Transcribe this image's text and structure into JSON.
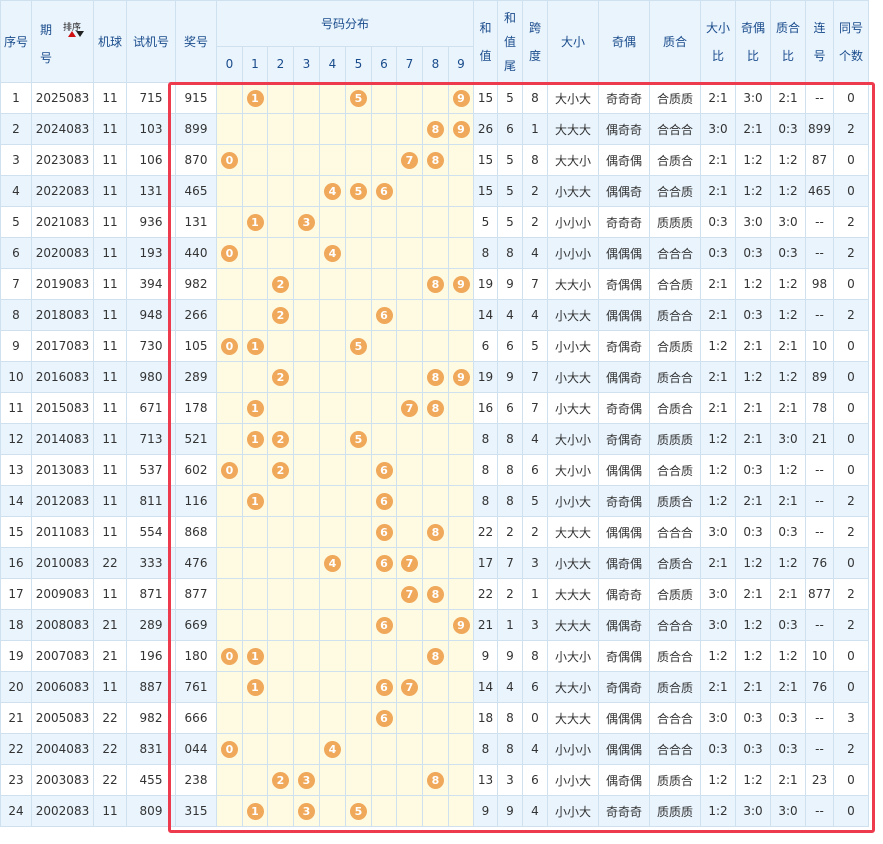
{
  "headers": {
    "seq": "序号",
    "issue": "期号",
    "sort_label": "排序",
    "machine": "机球",
    "trial": "试机号",
    "prize": "奖号",
    "distribution": "号码分布",
    "sum": "和值",
    "sum_tail": "和值尾",
    "span": "跨度",
    "size": "大小",
    "parity": "奇偶",
    "prime": "质合",
    "size_ratio": "大小比",
    "parity_ratio": "奇偶比",
    "prime_ratio": "质合比",
    "consecutive": "连号",
    "same_count": "同号个数",
    "digits": [
      "0",
      "1",
      "2",
      "3",
      "4",
      "5",
      "6",
      "7",
      "8",
      "9"
    ]
  },
  "accent": "#ee3a4d",
  "ball_color": "#f0a85a",
  "rows": [
    {
      "seq": "1",
      "issue": "2025083",
      "machine": "11",
      "trial": "715",
      "prize": "915",
      "balls": [
        1,
        5,
        9
      ],
      "sum": "15",
      "tail": "5",
      "span": "8",
      "size": "大小大",
      "parity": "奇奇奇",
      "prime": "合质质",
      "sr": "2:1",
      "pr": "3:0",
      "qr": "2:1",
      "lian": "--",
      "same": "0"
    },
    {
      "seq": "2",
      "issue": "2024083",
      "machine": "11",
      "trial": "103",
      "prize": "899",
      "balls": [
        8,
        9
      ],
      "sum": "26",
      "tail": "6",
      "span": "1",
      "size": "大大大",
      "parity": "偶奇奇",
      "prime": "合合合",
      "sr": "3:0",
      "pr": "2:1",
      "qr": "0:3",
      "lian": "899",
      "same": "2"
    },
    {
      "seq": "3",
      "issue": "2023083",
      "machine": "11",
      "trial": "106",
      "prize": "870",
      "balls": [
        0,
        7,
        8
      ],
      "sum": "15",
      "tail": "5",
      "span": "8",
      "size": "大大小",
      "parity": "偶奇偶",
      "prime": "合质合",
      "sr": "2:1",
      "pr": "1:2",
      "qr": "1:2",
      "lian": "87",
      "same": "0"
    },
    {
      "seq": "4",
      "issue": "2022083",
      "machine": "11",
      "trial": "131",
      "prize": "465",
      "balls": [
        4,
        5,
        6
      ],
      "sum": "15",
      "tail": "5",
      "span": "2",
      "size": "小大大",
      "parity": "偶偶奇",
      "prime": "合合质",
      "sr": "2:1",
      "pr": "1:2",
      "qr": "1:2",
      "lian": "465",
      "same": "0"
    },
    {
      "seq": "5",
      "issue": "2021083",
      "machine": "11",
      "trial": "936",
      "prize": "131",
      "balls": [
        1,
        3
      ],
      "sum": "5",
      "tail": "5",
      "span": "2",
      "size": "小小小",
      "parity": "奇奇奇",
      "prime": "质质质",
      "sr": "0:3",
      "pr": "3:0",
      "qr": "3:0",
      "lian": "--",
      "same": "2"
    },
    {
      "seq": "6",
      "issue": "2020083",
      "machine": "11",
      "trial": "193",
      "prize": "440",
      "balls": [
        0,
        4
      ],
      "sum": "8",
      "tail": "8",
      "span": "4",
      "size": "小小小",
      "parity": "偶偶偶",
      "prime": "合合合",
      "sr": "0:3",
      "pr": "0:3",
      "qr": "0:3",
      "lian": "--",
      "same": "2"
    },
    {
      "seq": "7",
      "issue": "2019083",
      "machine": "11",
      "trial": "394",
      "prize": "982",
      "balls": [
        2,
        8,
        9
      ],
      "sum": "19",
      "tail": "9",
      "span": "7",
      "size": "大大小",
      "parity": "奇偶偶",
      "prime": "合合质",
      "sr": "2:1",
      "pr": "1:2",
      "qr": "1:2",
      "lian": "98",
      "same": "0"
    },
    {
      "seq": "8",
      "issue": "2018083",
      "machine": "11",
      "trial": "948",
      "prize": "266",
      "balls": [
        2,
        6
      ],
      "sum": "14",
      "tail": "4",
      "span": "4",
      "size": "小大大",
      "parity": "偶偶偶",
      "prime": "质合合",
      "sr": "2:1",
      "pr": "0:3",
      "qr": "1:2",
      "lian": "--",
      "same": "2"
    },
    {
      "seq": "9",
      "issue": "2017083",
      "machine": "11",
      "trial": "730",
      "prize": "105",
      "balls": [
        0,
        1,
        5
      ],
      "sum": "6",
      "tail": "6",
      "span": "5",
      "size": "小小大",
      "parity": "奇偶奇",
      "prime": "合质质",
      "sr": "1:2",
      "pr": "2:1",
      "qr": "2:1",
      "lian": "10",
      "same": "0"
    },
    {
      "seq": "10",
      "issue": "2016083",
      "machine": "11",
      "trial": "980",
      "prize": "289",
      "balls": [
        2,
        8,
        9
      ],
      "sum": "19",
      "tail": "9",
      "span": "7",
      "size": "小大大",
      "parity": "偶偶奇",
      "prime": "质合合",
      "sr": "2:1",
      "pr": "1:2",
      "qr": "1:2",
      "lian": "89",
      "same": "0"
    },
    {
      "seq": "11",
      "issue": "2015083",
      "machine": "11",
      "trial": "671",
      "prize": "178",
      "balls": [
        1,
        7,
        8
      ],
      "sum": "16",
      "tail": "6",
      "span": "7",
      "size": "小大大",
      "parity": "奇奇偶",
      "prime": "合质合",
      "sr": "2:1",
      "pr": "2:1",
      "qr": "2:1",
      "lian": "78",
      "same": "0"
    },
    {
      "seq": "12",
      "issue": "2014083",
      "machine": "11",
      "trial": "713",
      "prize": "521",
      "balls": [
        1,
        2,
        5
      ],
      "sum": "8",
      "tail": "8",
      "span": "4",
      "size": "大小小",
      "parity": "奇偶奇",
      "prime": "质质质",
      "sr": "1:2",
      "pr": "2:1",
      "qr": "3:0",
      "lian": "21",
      "same": "0"
    },
    {
      "seq": "13",
      "issue": "2013083",
      "machine": "11",
      "trial": "537",
      "prize": "602",
      "balls": [
        0,
        2,
        6
      ],
      "sum": "8",
      "tail": "8",
      "span": "6",
      "size": "大小小",
      "parity": "偶偶偶",
      "prime": "合合质",
      "sr": "1:2",
      "pr": "0:3",
      "qr": "1:2",
      "lian": "--",
      "same": "0"
    },
    {
      "seq": "14",
      "issue": "2012083",
      "machine": "11",
      "trial": "811",
      "prize": "116",
      "balls": [
        1,
        6
      ],
      "sum": "8",
      "tail": "8",
      "span": "5",
      "size": "小小大",
      "parity": "奇奇偶",
      "prime": "质质合",
      "sr": "1:2",
      "pr": "2:1",
      "qr": "2:1",
      "lian": "--",
      "same": "2"
    },
    {
      "seq": "15",
      "issue": "2011083",
      "machine": "11",
      "trial": "554",
      "prize": "868",
      "balls": [
        6,
        8
      ],
      "sum": "22",
      "tail": "2",
      "span": "2",
      "size": "大大大",
      "parity": "偶偶偶",
      "prime": "合合合",
      "sr": "3:0",
      "pr": "0:3",
      "qr": "0:3",
      "lian": "--",
      "same": "2"
    },
    {
      "seq": "16",
      "issue": "2010083",
      "machine": "22",
      "trial": "333",
      "prize": "476",
      "balls": [
        4,
        6,
        7
      ],
      "sum": "17",
      "tail": "7",
      "span": "3",
      "size": "小大大",
      "parity": "偶奇偶",
      "prime": "合质合",
      "sr": "2:1",
      "pr": "1:2",
      "qr": "1:2",
      "lian": "76",
      "same": "0"
    },
    {
      "seq": "17",
      "issue": "2009083",
      "machine": "11",
      "trial": "871",
      "prize": "877",
      "balls": [
        7,
        8
      ],
      "sum": "22",
      "tail": "2",
      "span": "1",
      "size": "大大大",
      "parity": "偶奇奇",
      "prime": "合质质",
      "sr": "3:0",
      "pr": "2:1",
      "qr": "2:1",
      "lian": "877",
      "same": "2"
    },
    {
      "seq": "18",
      "issue": "2008083",
      "machine": "21",
      "trial": "289",
      "prize": "669",
      "balls": [
        6,
        9
      ],
      "sum": "21",
      "tail": "1",
      "span": "3",
      "size": "大大大",
      "parity": "偶偶奇",
      "prime": "合合合",
      "sr": "3:0",
      "pr": "1:2",
      "qr": "0:3",
      "lian": "--",
      "same": "2"
    },
    {
      "seq": "19",
      "issue": "2007083",
      "machine": "21",
      "trial": "196",
      "prize": "180",
      "balls": [
        0,
        1,
        8
      ],
      "sum": "9",
      "tail": "9",
      "span": "8",
      "size": "小大小",
      "parity": "奇偶偶",
      "prime": "质合合",
      "sr": "1:2",
      "pr": "1:2",
      "qr": "1:2",
      "lian": "10",
      "same": "0"
    },
    {
      "seq": "20",
      "issue": "2006083",
      "machine": "11",
      "trial": "887",
      "prize": "761",
      "balls": [
        1,
        6,
        7
      ],
      "sum": "14",
      "tail": "4",
      "span": "6",
      "size": "大大小",
      "parity": "奇偶奇",
      "prime": "质合质",
      "sr": "2:1",
      "pr": "2:1",
      "qr": "2:1",
      "lian": "76",
      "same": "0"
    },
    {
      "seq": "21",
      "issue": "2005083",
      "machine": "22",
      "trial": "982",
      "prize": "666",
      "balls": [
        6
      ],
      "sum": "18",
      "tail": "8",
      "span": "0",
      "size": "大大大",
      "parity": "偶偶偶",
      "prime": "合合合",
      "sr": "3:0",
      "pr": "0:3",
      "qr": "0:3",
      "lian": "--",
      "same": "3"
    },
    {
      "seq": "22",
      "issue": "2004083",
      "machine": "22",
      "trial": "831",
      "prize": "044",
      "balls": [
        0,
        4
      ],
      "sum": "8",
      "tail": "8",
      "span": "4",
      "size": "小小小",
      "parity": "偶偶偶",
      "prime": "合合合",
      "sr": "0:3",
      "pr": "0:3",
      "qr": "0:3",
      "lian": "--",
      "same": "2"
    },
    {
      "seq": "23",
      "issue": "2003083",
      "machine": "22",
      "trial": "455",
      "prize": "238",
      "balls": [
        2,
        3,
        8
      ],
      "sum": "13",
      "tail": "3",
      "span": "6",
      "size": "小小大",
      "parity": "偶奇偶",
      "prime": "质质合",
      "sr": "1:2",
      "pr": "1:2",
      "qr": "2:1",
      "lian": "23",
      "same": "0"
    },
    {
      "seq": "24",
      "issue": "2002083",
      "machine": "11",
      "trial": "809",
      "prize": "315",
      "balls": [
        1,
        3,
        5
      ],
      "sum": "9",
      "tail": "9",
      "span": "4",
      "size": "小小大",
      "parity": "奇奇奇",
      "prime": "质质质",
      "sr": "1:2",
      "pr": "3:0",
      "qr": "3:0",
      "lian": "--",
      "same": "0"
    }
  ]
}
